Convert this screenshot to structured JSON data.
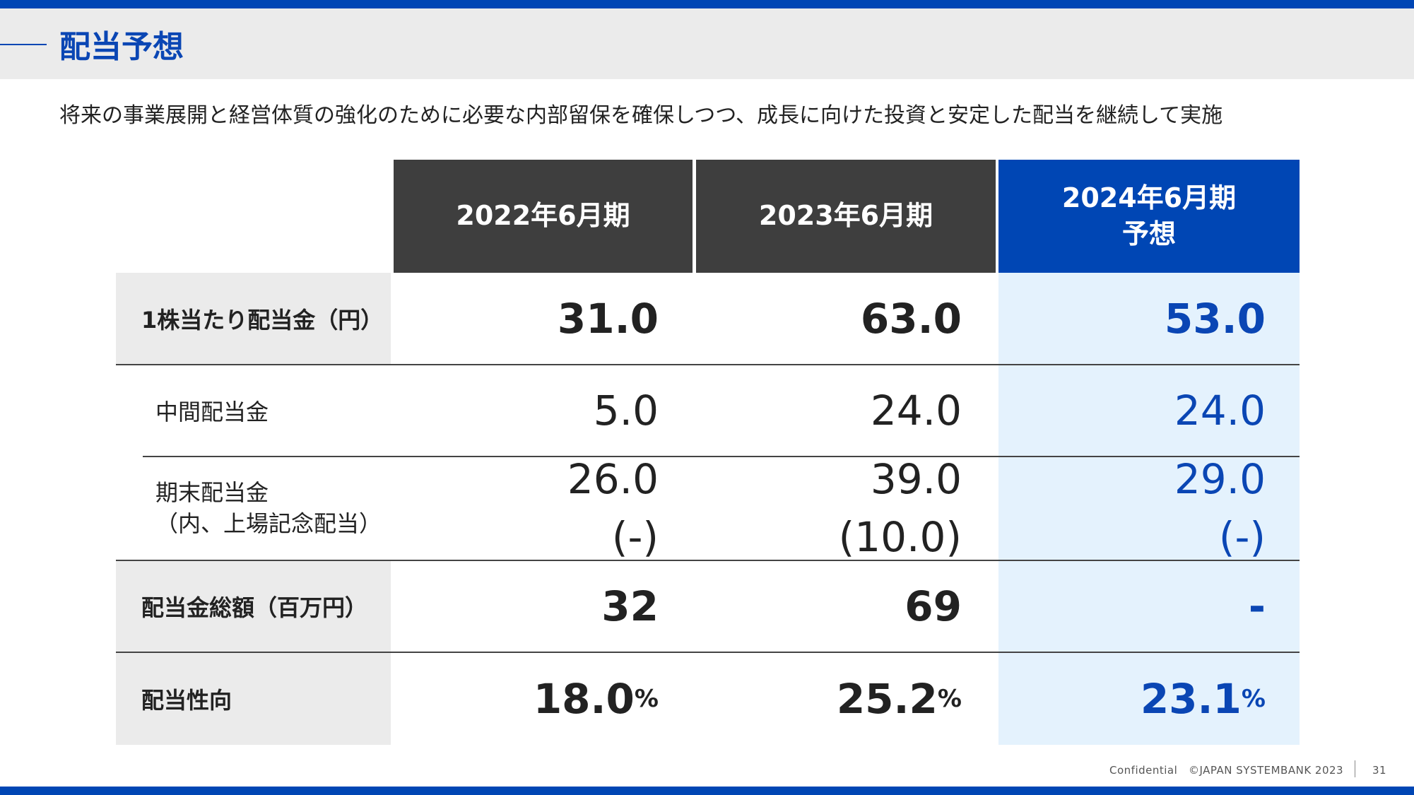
{
  "title": "配当予想",
  "subtitle": "将来の事業展開と経営体質の強化のために必要な内部留保を確保しつつ、成長に向けた投資と安定した配当を継続して実施",
  "table": {
    "headers": [
      {
        "line1": "2022年6月期",
        "line2": ""
      },
      {
        "line1": "2023年6月期",
        "line2": ""
      },
      {
        "line1": "2024年6月期",
        "line2": "予想"
      }
    ],
    "rows": [
      {
        "label": "1株当たり配当金（円）",
        "values": [
          "31.0",
          "63.0",
          "53.0"
        ]
      },
      {
        "label": "中間配当金",
        "values": [
          "5.0",
          "24.0",
          "24.0"
        ]
      },
      {
        "label_line1": "期末配当金",
        "label_line2": "（内、上場記念配当）",
        "values": [
          "26.0",
          "39.0",
          "29.0"
        ],
        "sub_values": [
          "(-)",
          "(10.0)",
          "(-)"
        ]
      },
      {
        "label": "配当金総額（百万円）",
        "values": [
          "32",
          "69",
          "-"
        ]
      },
      {
        "label": "配当性向",
        "values": [
          "18.0",
          "25.2",
          "23.1"
        ],
        "unit": "%"
      }
    ]
  },
  "footer": {
    "confidential": "Confidential",
    "copyright": "©JAPAN SYSTEMBANK 2023",
    "page_number": "31"
  }
}
